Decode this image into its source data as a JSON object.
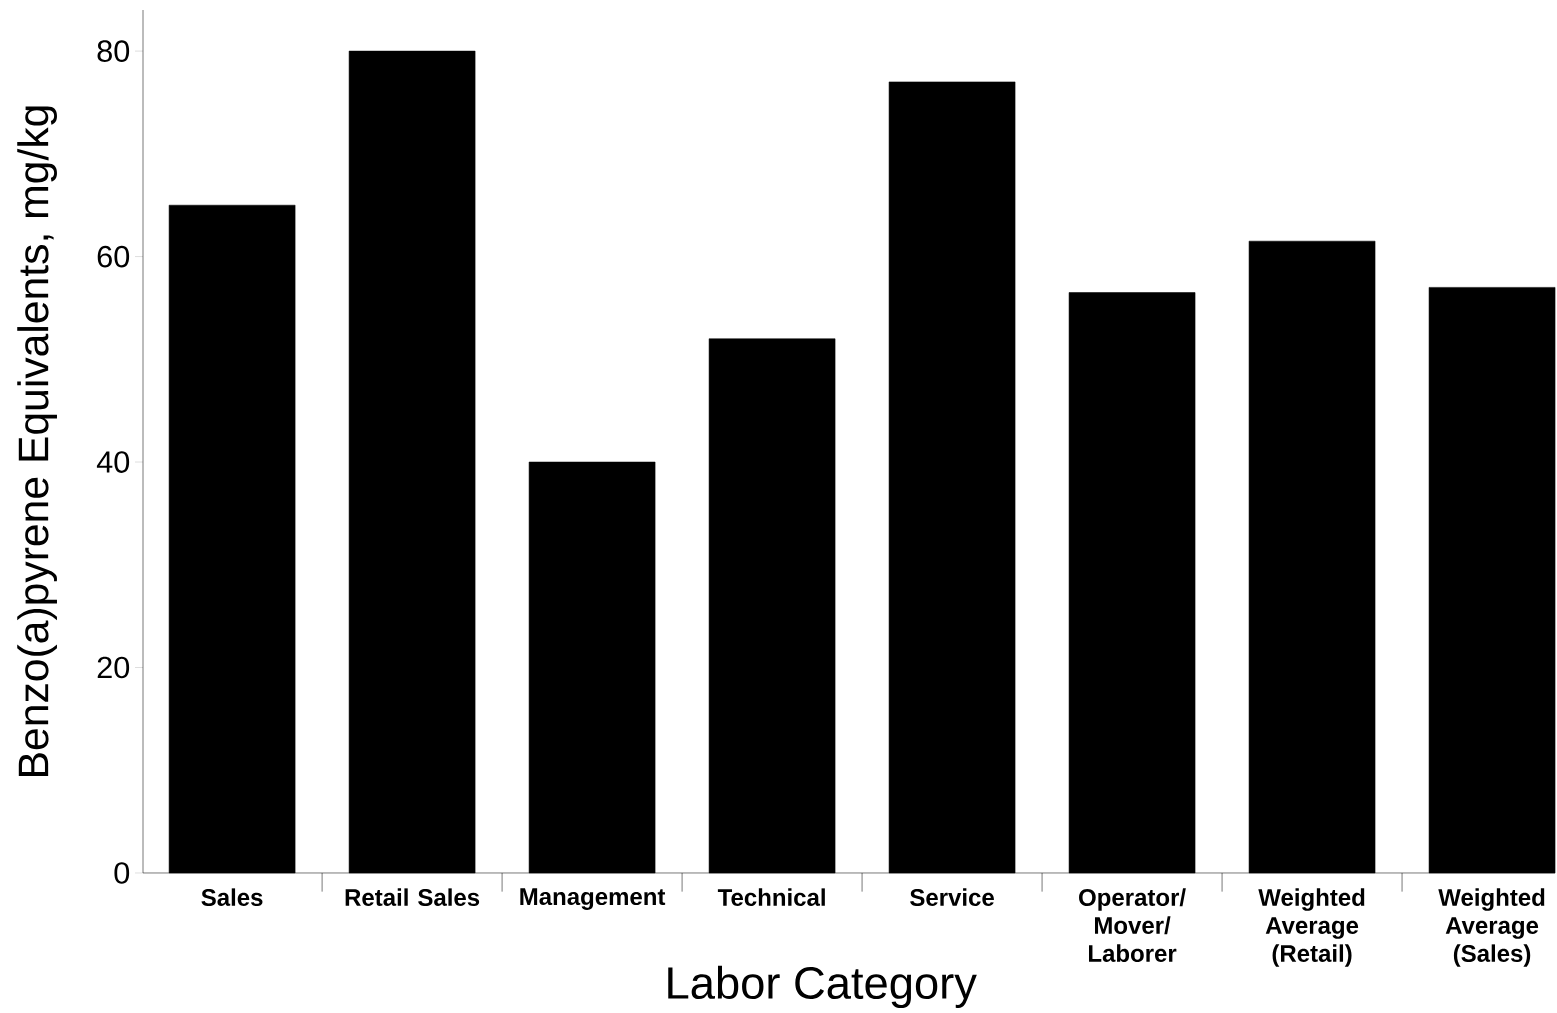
{
  "chart_data": {
    "type": "bar",
    "xlabel": "Labor Category",
    "ylabel": "Benzo(a)pyrene Equivalents, mg/kg",
    "categories": [
      "Sales",
      "Retail Sales",
      "Management",
      "Technical",
      "Service",
      "Operator/ Mover/ Laborer",
      "Weighted Average (Retail)",
      "Weighted Average (Sales)"
    ],
    "values": [
      65,
      80,
      40,
      52,
      77,
      56.5,
      61.5,
      57
    ],
    "color": "#000000",
    "ylim": [
      0,
      84
    ],
    "yticks": [
      0,
      20,
      40,
      60,
      80
    ]
  }
}
